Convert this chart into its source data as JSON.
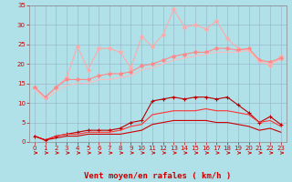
{
  "x": [
    0,
    1,
    2,
    3,
    4,
    5,
    6,
    7,
    8,
    9,
    10,
    11,
    12,
    13,
    14,
    15,
    16,
    17,
    18,
    19,
    20,
    21,
    22,
    23
  ],
  "series": [
    {
      "name": "light_pink_upper",
      "color": "#ffaaaa",
      "linewidth": 0.8,
      "marker": "D",
      "markersize": 2.0,
      "values": [
        14,
        11.5,
        14,
        16.5,
        24.5,
        18.5,
        24,
        24,
        23,
        19,
        27,
        24.5,
        27.5,
        34,
        29.5,
        30,
        29,
        31,
        26.5,
        24,
        23.5,
        21,
        19.5,
        22
      ]
    },
    {
      "name": "pink_mid_upper",
      "color": "#ff8888",
      "linewidth": 0.8,
      "marker": "D",
      "markersize": 2.0,
      "values": [
        14,
        11.5,
        14,
        16,
        16,
        16,
        17,
        17.5,
        17.5,
        18,
        19.5,
        20,
        21,
        22,
        22.5,
        23,
        23,
        24,
        24,
        23.5,
        24,
        21,
        20.5,
        21.5
      ]
    },
    {
      "name": "pink_mid_lower",
      "color": "#ffbbbb",
      "linewidth": 0.8,
      "marker": null,
      "markersize": 0,
      "values": [
        13.5,
        11,
        13,
        14.5,
        15,
        15,
        16,
        16,
        16.5,
        17,
        18.5,
        19,
        20,
        21,
        21.5,
        22,
        22.5,
        23,
        23,
        23,
        23.5,
        20.5,
        20,
        21
      ]
    },
    {
      "name": "red_upper",
      "color": "#bb0000",
      "linewidth": 0.8,
      "marker": "+",
      "markersize": 3,
      "values": [
        1.5,
        0.5,
        1.5,
        2,
        2.5,
        3,
        3,
        3,
        3.5,
        5,
        5.5,
        10.5,
        11,
        11.5,
        11,
        11.5,
        11.5,
        11,
        11.5,
        9.5,
        7.5,
        5,
        6.5,
        4.5
      ]
    },
    {
      "name": "red_mid",
      "color": "#ff3333",
      "linewidth": 0.8,
      "marker": null,
      "markersize": 0,
      "values": [
        1.5,
        0.5,
        1.5,
        2,
        2,
        2.5,
        2.5,
        2.5,
        3,
        4,
        4.5,
        7,
        7.5,
        8,
        8,
        8,
        8.5,
        8,
        8,
        7.5,
        7,
        5,
        5.5,
        4
      ]
    },
    {
      "name": "red_lower",
      "color": "#cc0000",
      "linewidth": 0.8,
      "marker": null,
      "markersize": 0,
      "values": [
        1.5,
        0.5,
        1,
        1.5,
        1.5,
        2,
        2,
        2,
        2,
        2.5,
        3,
        4.5,
        5,
        5.5,
        5.5,
        5.5,
        5.5,
        5,
        5,
        4.5,
        4,
        3,
        3.5,
        2.5
      ]
    }
  ],
  "xlabel": "Vent moyen/en rafales ( km/h )",
  "ylim": [
    0,
    35
  ],
  "xlim": [
    0,
    23
  ],
  "yticks": [
    0,
    5,
    10,
    15,
    20,
    25,
    30,
    35
  ],
  "xticks": [
    0,
    1,
    2,
    3,
    4,
    5,
    6,
    7,
    8,
    9,
    10,
    11,
    12,
    13,
    14,
    15,
    16,
    17,
    18,
    19,
    20,
    21,
    22,
    23
  ],
  "bg_color": "#b0e0e8",
  "grid_color": "#99bbcc",
  "text_color": "#cc0000",
  "xlabel_fontsize": 6.5,
  "tick_fontsize": 5.0
}
